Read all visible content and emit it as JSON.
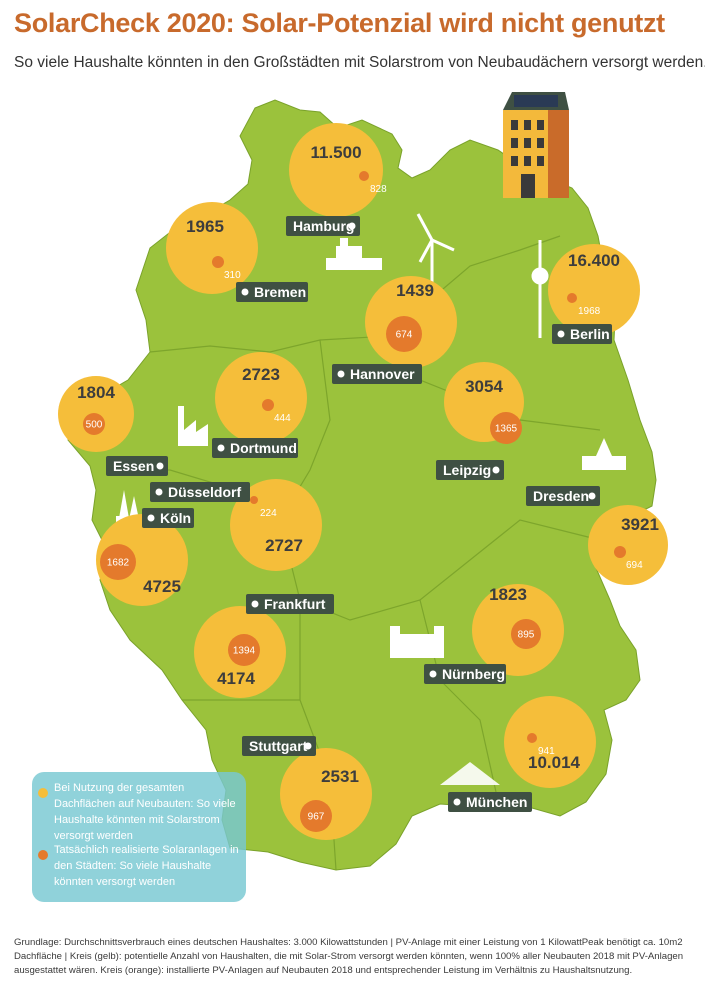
{
  "title": "SolarCheck 2020: Solar-Potenzial wird nicht genutzt",
  "subtitle": "So viele Haushalte könnten in den Großstädten mit Solarstrom von Neubaudächern versorgt werden.",
  "colors": {
    "land": "#9bc23c",
    "border": "#7aa22a",
    "potential_circle": "#f5be3a",
    "realized_circle": "#e47a2c",
    "label_box": "#3f5043",
    "accent_text": "#c86a2c"
  },
  "cities": [
    {
      "name": "Hamburg",
      "potential": "11.500",
      "realized": "828"
    },
    {
      "name": "Bremen",
      "potential": "1965",
      "realized": "310"
    },
    {
      "name": "Berlin",
      "potential": "16.400",
      "realized": "1968"
    },
    {
      "name": "Hannover",
      "potential": "1439",
      "realized": "674"
    },
    {
      "name": "Dortmund",
      "potential": "2723",
      "realized": "444"
    },
    {
      "name": "Essen",
      "potential": "1804",
      "realized": "500"
    },
    {
      "name": "Leipzig",
      "potential": "3054",
      "realized": "1365"
    },
    {
      "name": "Dresden",
      "potential": "3921",
      "realized": "694"
    },
    {
      "name": "Düsseldorf",
      "potential": "2727",
      "realized": "224"
    },
    {
      "name": "Köln",
      "potential": "4725",
      "realized": "1682"
    },
    {
      "name": "Frankfurt",
      "potential": "4174",
      "realized": "1394"
    },
    {
      "name": "Nürnberg",
      "potential": "1823",
      "realized": "895"
    },
    {
      "name": "Stuttgart",
      "potential": "2531",
      "realized": "967"
    },
    {
      "name": "München",
      "potential": "10.014",
      "realized": "941"
    }
  ],
  "legend": {
    "potential": "Bei Nutzung der gesamten Dachflächen auf Neubauten: So viele Haushalte könnten mit Solarstrom versorgt werden",
    "realized": "Tatsächlich realisierte Solaranlagen in den Städten: So viele Haushalte könnten versorgt werden"
  },
  "footnote": "Grundlage: Durchschnittsverbrauch eines deutschen Haushaltes: 3.000 Kilowattstunden | PV-Anlage mit einer Leistung von 1 KilowattPeak benötigt ca. 10m2 Dachfläche | Kreis (gelb): potentielle Anzahl von Haushalten, die mit Solar-Strom versorgt werden könnten, wenn 100% aller Neubauten 2018 mit PV-Anlagen ausgestattet wären. Kreis (orange): installierte PV-Anlagen auf Neubauten 2018 und entsprechender Leistung im Verhältnis zu Haushaltsnutzung."
}
